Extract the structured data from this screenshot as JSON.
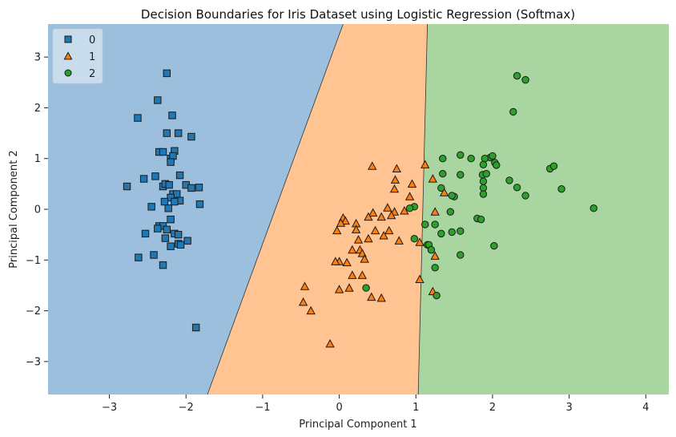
{
  "chart_data": {
    "type": "scatter",
    "title": "Decision Boundaries for Iris Dataset using Logistic Regression (Softmax)",
    "xlabel": "Principal Component 1",
    "ylabel": "Principal Component 2",
    "xlim": [
      -3.8,
      4.3
    ],
    "ylim": [
      -3.65,
      3.65
    ],
    "xticks": [
      -3,
      -2,
      -1,
      0,
      1,
      2,
      3,
      4
    ],
    "yticks": [
      -3,
      -2,
      -1,
      0,
      1,
      2,
      3
    ],
    "grid": false,
    "legend_position": "top-left",
    "regions": [
      {
        "class": "0",
        "color": "#9bbfdc"
      },
      {
        "class": "1",
        "color": "#ffc491"
      },
      {
        "class": "2",
        "color": "#a9d5a0"
      }
    ],
    "boundaries": [
      {
        "between": [
          "0",
          "1"
        ],
        "top": [
          0.05,
          3.65
        ],
        "bottom": [
          -1.72,
          -3.65
        ]
      },
      {
        "between": [
          "1",
          "2"
        ],
        "top": [
          1.15,
          3.65
        ],
        "bottom": [
          1.03,
          -3.65
        ]
      }
    ],
    "series": [
      {
        "name": "0",
        "marker": "square",
        "color": "#1f77b4",
        "points": [
          [
            -2.25,
            2.68
          ],
          [
            -2.37,
            2.15
          ],
          [
            -2.63,
            1.8
          ],
          [
            -2.18,
            1.85
          ],
          [
            -2.25,
            1.5
          ],
          [
            -2.1,
            1.5
          ],
          [
            -1.93,
            1.43
          ],
          [
            -2.35,
            1.13
          ],
          [
            -2.3,
            1.13
          ],
          [
            -2.15,
            1.15
          ],
          [
            -2.2,
            1.0
          ],
          [
            -2.17,
            1.05
          ],
          [
            -2.2,
            0.93
          ],
          [
            -2.4,
            0.65
          ],
          [
            -2.55,
            0.6
          ],
          [
            -2.08,
            0.67
          ],
          [
            -2.0,
            0.48
          ],
          [
            -1.93,
            0.42
          ],
          [
            -1.83,
            0.43
          ],
          [
            -2.77,
            0.45
          ],
          [
            -2.3,
            0.45
          ],
          [
            -2.27,
            0.5
          ],
          [
            -2.22,
            0.48
          ],
          [
            -2.17,
            0.3
          ],
          [
            -2.12,
            0.3
          ],
          [
            -2.2,
            0.23
          ],
          [
            -2.08,
            0.17
          ],
          [
            -2.28,
            0.15
          ],
          [
            -2.15,
            0.15
          ],
          [
            -2.23,
            0.02
          ],
          [
            -2.45,
            0.05
          ],
          [
            -1.82,
            0.1
          ],
          [
            -2.2,
            -0.2
          ],
          [
            -2.35,
            -0.33
          ],
          [
            -2.3,
            -0.33
          ],
          [
            -2.37,
            -0.38
          ],
          [
            -2.25,
            -0.4
          ],
          [
            -2.53,
            -0.48
          ],
          [
            -2.15,
            -0.48
          ],
          [
            -2.1,
            -0.5
          ],
          [
            -2.27,
            -0.57
          ],
          [
            -1.98,
            -0.62
          ],
          [
            -2.1,
            -0.68
          ],
          [
            -2.07,
            -0.7
          ],
          [
            -2.2,
            -0.73
          ],
          [
            -2.62,
            -0.95
          ],
          [
            -2.42,
            -0.9
          ],
          [
            -2.3,
            -1.1
          ],
          [
            -1.87,
            -2.33
          ]
        ]
      },
      {
        "name": "1",
        "marker": "triangle",
        "color": "#ff7f0e",
        "points": [
          [
            0.43,
            0.85
          ],
          [
            0.75,
            0.8
          ],
          [
            1.12,
            0.88
          ],
          [
            0.73,
            0.58
          ],
          [
            0.95,
            0.5
          ],
          [
            1.22,
            0.6
          ],
          [
            0.72,
            0.4
          ],
          [
            0.92,
            0.25
          ],
          [
            1.37,
            0.33
          ],
          [
            0.63,
            0.03
          ],
          [
            0.72,
            -0.05
          ],
          [
            0.44,
            -0.07
          ],
          [
            0.68,
            -0.12
          ],
          [
            0.85,
            -0.03
          ],
          [
            0.55,
            -0.15
          ],
          [
            0.38,
            -0.15
          ],
          [
            0.05,
            -0.17
          ],
          [
            0.08,
            -0.23
          ],
          [
            0.02,
            -0.27
          ],
          [
            0.22,
            -0.28
          ],
          [
            0.22,
            -0.4
          ],
          [
            0.47,
            -0.42
          ],
          [
            0.65,
            -0.42
          ],
          [
            -0.03,
            -0.42
          ],
          [
            0.25,
            -0.6
          ],
          [
            0.38,
            -0.58
          ],
          [
            0.58,
            -0.52
          ],
          [
            0.78,
            -0.62
          ],
          [
            1.05,
            -0.65
          ],
          [
            1.25,
            -0.05
          ],
          [
            0.17,
            -0.8
          ],
          [
            0.27,
            -0.8
          ],
          [
            0.3,
            -0.87
          ],
          [
            0.33,
            -0.98
          ],
          [
            0.0,
            -1.03
          ],
          [
            -0.05,
            -1.03
          ],
          [
            0.1,
            -1.05
          ],
          [
            0.17,
            -1.3
          ],
          [
            1.25,
            -0.92
          ],
          [
            0.3,
            -1.3
          ],
          [
            1.05,
            -1.38
          ],
          [
            -0.45,
            -1.52
          ],
          [
            0.0,
            -1.58
          ],
          [
            0.13,
            -1.55
          ],
          [
            0.42,
            -1.73
          ],
          [
            0.55,
            -1.75
          ],
          [
            1.22,
            -1.62
          ],
          [
            -0.47,
            -1.83
          ],
          [
            -0.37,
            -2.0
          ],
          [
            -0.12,
            -2.65
          ]
        ]
      },
      {
        "name": "2",
        "marker": "circle",
        "color": "#2ca02c",
        "points": [
          [
            2.32,
            2.63
          ],
          [
            2.43,
            2.55
          ],
          [
            2.27,
            1.92
          ],
          [
            1.58,
            1.07
          ],
          [
            1.35,
            1.0
          ],
          [
            1.72,
            1.0
          ],
          [
            1.97,
            1.02
          ],
          [
            2.0,
            1.05
          ],
          [
            1.9,
            1.0
          ],
          [
            1.88,
            0.88
          ],
          [
            2.03,
            0.92
          ],
          [
            2.05,
            0.87
          ],
          [
            2.75,
            0.8
          ],
          [
            2.8,
            0.85
          ],
          [
            1.35,
            0.7
          ],
          [
            1.58,
            0.68
          ],
          [
            1.87,
            0.68
          ],
          [
            1.92,
            0.7
          ],
          [
            2.22,
            0.57
          ],
          [
            1.88,
            0.55
          ],
          [
            2.32,
            0.43
          ],
          [
            1.88,
            0.42
          ],
          [
            2.9,
            0.4
          ],
          [
            1.33,
            0.42
          ],
          [
            1.88,
            0.3
          ],
          [
            1.5,
            0.25
          ],
          [
            1.47,
            0.27
          ],
          [
            2.43,
            0.27
          ],
          [
            0.98,
            0.05
          ],
          [
            0.92,
            0.02
          ],
          [
            1.45,
            -0.05
          ],
          [
            3.32,
            0.02
          ],
          [
            1.12,
            -0.3
          ],
          [
            1.25,
            -0.3
          ],
          [
            1.8,
            -0.18
          ],
          [
            1.85,
            -0.2
          ],
          [
            1.33,
            -0.48
          ],
          [
            1.47,
            -0.45
          ],
          [
            1.58,
            -0.43
          ],
          [
            0.98,
            -0.58
          ],
          [
            1.15,
            -0.7
          ],
          [
            1.17,
            -0.7
          ],
          [
            2.02,
            -0.72
          ],
          [
            1.2,
            -0.8
          ],
          [
            1.58,
            -0.9
          ],
          [
            1.25,
            -1.15
          ],
          [
            0.35,
            -1.55
          ],
          [
            1.27,
            -1.7
          ]
        ]
      }
    ],
    "legend": [
      {
        "label": "0",
        "marker": "square",
        "color": "#1f77b4"
      },
      {
        "label": "1",
        "marker": "triangle",
        "color": "#ff7f0e"
      },
      {
        "label": "2",
        "marker": "circle",
        "color": "#2ca02c"
      }
    ]
  }
}
